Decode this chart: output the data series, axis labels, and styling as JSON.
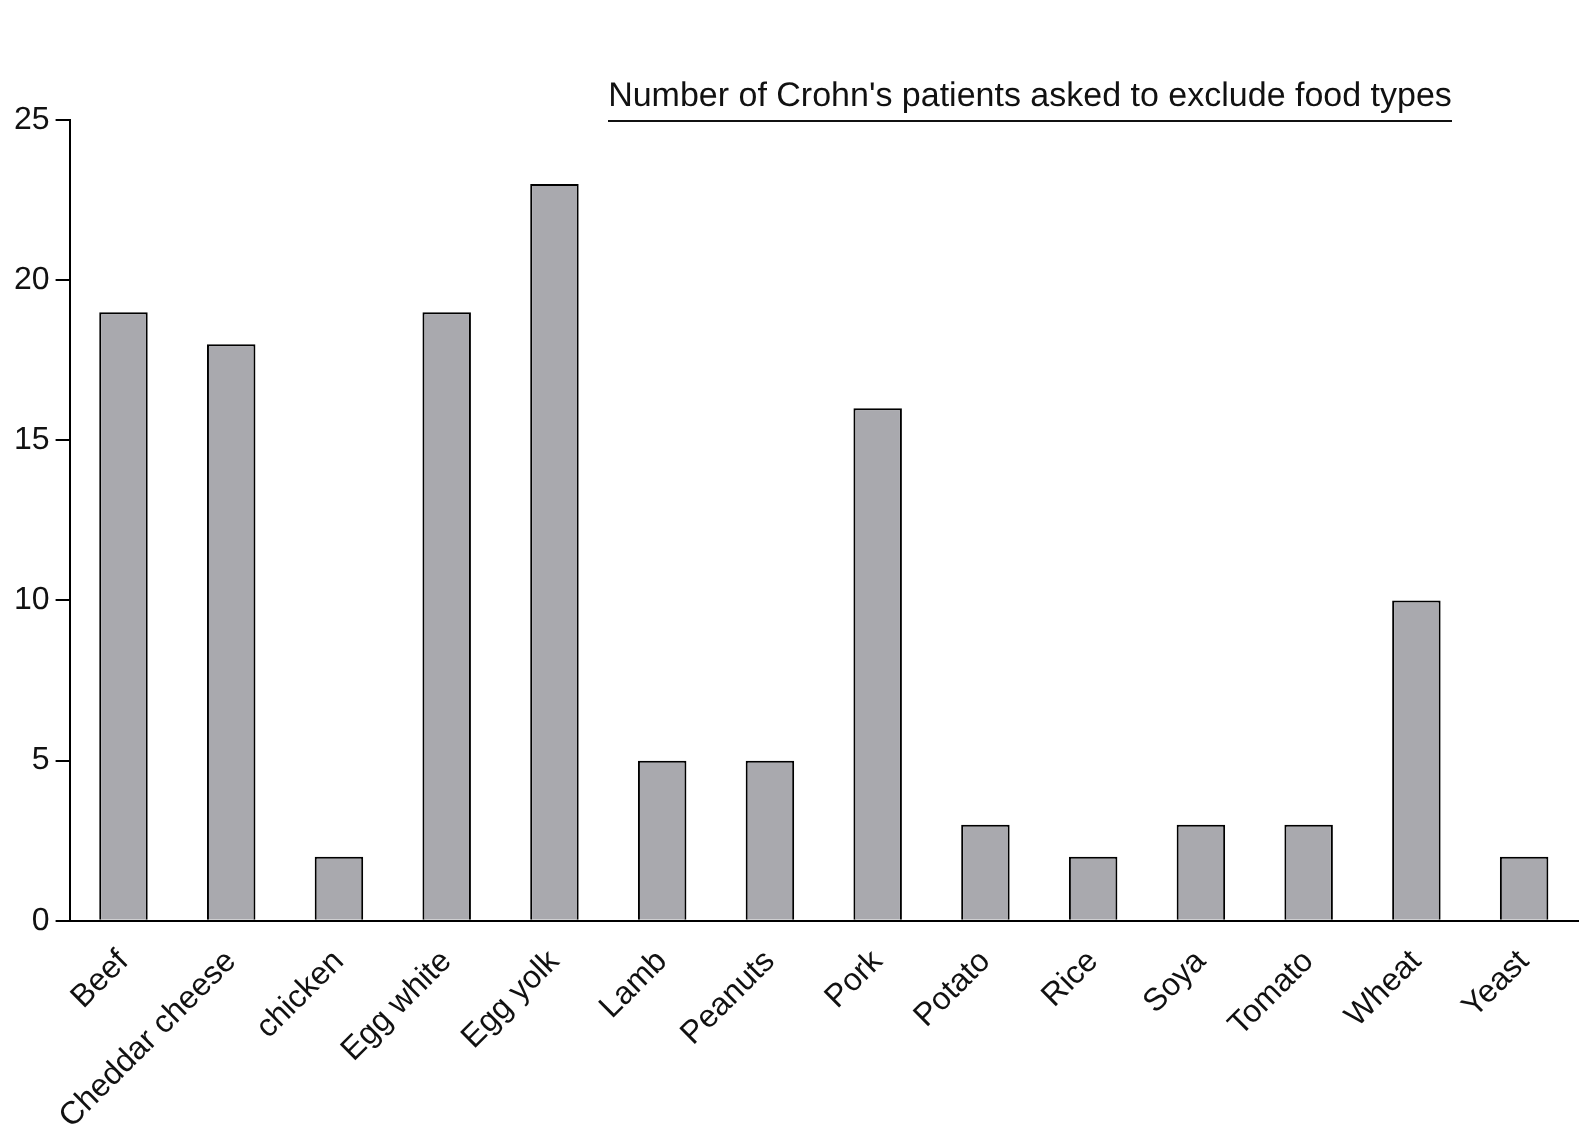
{
  "chart_data": {
    "type": "bar",
    "title": "Number of Crohn's patients asked to exclude food types",
    "categories": [
      "Beef",
      "Cheddar cheese",
      "chicken",
      "Egg white",
      "Egg yolk",
      "Lamb",
      "Peanuts",
      "Pork",
      "Potato",
      "Rice",
      "Soya",
      "Tomato",
      "Wheat",
      "Yeast"
    ],
    "values": [
      19,
      18,
      2,
      19,
      23,
      5,
      5,
      16,
      3,
      2,
      3,
      3,
      10,
      2
    ],
    "color": "#a9a9ae",
    "ylim": [
      0,
      25
    ],
    "yticks": [
      0,
      5,
      10,
      15,
      20,
      25
    ]
  }
}
